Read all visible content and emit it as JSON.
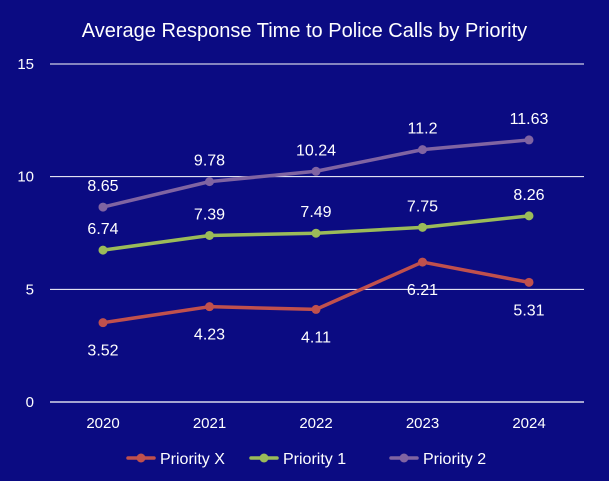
{
  "chart_data": {
    "type": "line",
    "title": "Average Response Time to Police Calls by Priority",
    "xlabel": "",
    "ylabel": "",
    "categories": [
      "2020",
      "2021",
      "2022",
      "2023",
      "2024"
    ],
    "ylim": [
      0,
      15
    ],
    "yticks": [
      "0",
      "5",
      "10",
      "15"
    ],
    "grid": true,
    "legend_position": "bottom",
    "series": [
      {
        "name": "Priority X",
        "color": "#c0504d",
        "values": [
          3.52,
          4.23,
          4.11,
          6.21,
          5.31
        ],
        "labels": [
          "3.52",
          "4.23",
          "4.11",
          "6.21",
          "5.31"
        ],
        "label_position": "below"
      },
      {
        "name": "Priority 1",
        "color": "#9bbb59",
        "values": [
          6.74,
          7.39,
          7.49,
          7.75,
          8.26
        ],
        "labels": [
          "6.74",
          "7.39",
          "7.49",
          "7.75",
          "8.26"
        ],
        "label_position": "above"
      },
      {
        "name": "Priority 2",
        "color": "#8064a2",
        "values": [
          8.65,
          9.78,
          10.24,
          11.2,
          11.63
        ],
        "labels": [
          "8.65",
          "9.78",
          "10.24",
          "11.2",
          "11.63"
        ],
        "label_position": "above"
      }
    ]
  }
}
